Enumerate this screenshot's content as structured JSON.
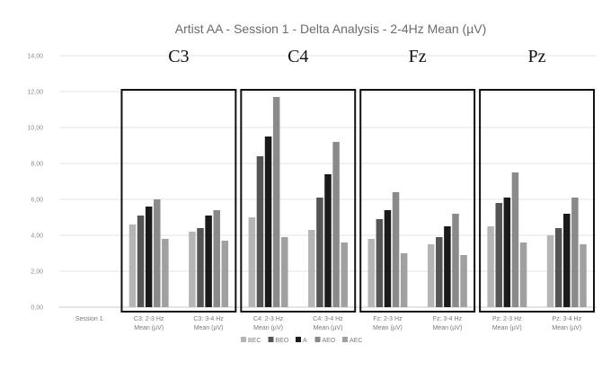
{
  "chart_data": {
    "type": "bar",
    "title": "Artist AA - Session 1 - Delta Analysis - 2-4Hz Mean (µV)",
    "ylim": [
      0,
      14
    ],
    "yticks": [
      "0,00",
      "2,00",
      "4,00",
      "6,00",
      "8,00",
      "10,00",
      "12,00",
      "14,00"
    ],
    "grid": true,
    "legend_position": "bottom",
    "categories": [
      [
        "Session 1"
      ],
      [
        "C3: 2-3 Hz",
        "Mean (µV)"
      ],
      [
        "C3: 3-4 Hz",
        "Mean (µV)"
      ],
      [
        "C4: 2-3 Hz",
        "Mean (µV)"
      ],
      [
        "C4: 3-4 Hz",
        "Mean (µV)"
      ],
      [
        "Fz: 2-3 Hz",
        "Mean (µV)"
      ],
      [
        "Fz: 3-4 Hz",
        "Mean (µV)"
      ],
      [
        "Pz: 2-3 Hz",
        "Mean (µV)"
      ],
      [
        "Pz: 3-4 Hz",
        "Mean (µV)"
      ]
    ],
    "series": [
      {
        "name": "BEC",
        "color": "#b5b5b5",
        "values": [
          null,
          4.6,
          4.2,
          5.0,
          4.3,
          3.8,
          3.5,
          4.5,
          4.0
        ]
      },
      {
        "name": "BEO",
        "color": "#555555",
        "values": [
          null,
          5.1,
          4.4,
          8.4,
          6.1,
          4.9,
          3.9,
          5.8,
          4.4
        ]
      },
      {
        "name": "A",
        "color": "#1a1a1a",
        "values": [
          null,
          5.6,
          5.1,
          9.5,
          7.4,
          5.4,
          4.5,
          6.1,
          5.2
        ]
      },
      {
        "name": "AEO",
        "color": "#8a8a8a",
        "values": [
          null,
          6.0,
          5.4,
          11.7,
          9.2,
          6.4,
          5.2,
          7.5,
          6.1
        ]
      },
      {
        "name": "AEC",
        "color": "#a0a0a0",
        "values": [
          null,
          3.8,
          3.7,
          3.9,
          3.6,
          3.0,
          2.9,
          3.6,
          3.5
        ]
      }
    ],
    "annotations": [
      "C3",
      "C4",
      "Fz",
      "Pz"
    ]
  }
}
